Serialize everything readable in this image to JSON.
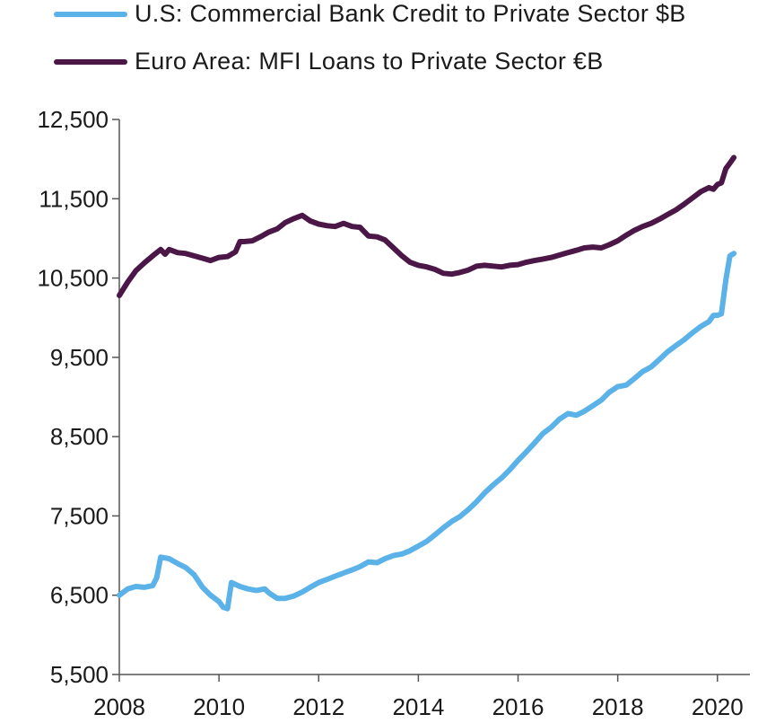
{
  "chart_data": {
    "type": "line",
    "title": "",
    "xlabel": "",
    "ylabel": "",
    "xlim": [
      2008.0,
      2020.4
    ],
    "ylim": [
      5500,
      12500
    ],
    "yticks": [
      5500,
      6500,
      7500,
      8500,
      9500,
      10500,
      11500,
      12500
    ],
    "ytick_labels": [
      "5,500",
      "6,500",
      "7,500",
      "8,500",
      "9,500",
      "10,500",
      "11,500",
      "12,500"
    ],
    "xticks": [
      2008,
      2010,
      2012,
      2014,
      2016,
      2018,
      2020
    ],
    "xtick_labels": [
      "2008",
      "2010",
      "2012",
      "2014",
      "2016",
      "2018",
      "2020"
    ],
    "grid": false,
    "legend_position": "top-left",
    "series": [
      {
        "name": "U.S: Commercial Bank Credit to Private Sector $B",
        "color": "#5ab2e8",
        "points": [
          [
            2008.0,
            6500
          ],
          [
            2008.17,
            6580
          ],
          [
            2008.33,
            6610
          ],
          [
            2008.5,
            6600
          ],
          [
            2008.67,
            6620
          ],
          [
            2008.75,
            6720
          ],
          [
            2008.83,
            6980
          ],
          [
            2009.0,
            6960
          ],
          [
            2009.17,
            6900
          ],
          [
            2009.33,
            6850
          ],
          [
            2009.5,
            6760
          ],
          [
            2009.67,
            6600
          ],
          [
            2009.83,
            6500
          ],
          [
            2010.0,
            6420
          ],
          [
            2010.08,
            6350
          ],
          [
            2010.17,
            6330
          ],
          [
            2010.25,
            6660
          ],
          [
            2010.42,
            6610
          ],
          [
            2010.58,
            6580
          ],
          [
            2010.75,
            6560
          ],
          [
            2010.92,
            6580
          ],
          [
            2011.0,
            6530
          ],
          [
            2011.17,
            6460
          ],
          [
            2011.33,
            6460
          ],
          [
            2011.5,
            6490
          ],
          [
            2011.67,
            6540
          ],
          [
            2011.83,
            6600
          ],
          [
            2012.0,
            6660
          ],
          [
            2012.17,
            6700
          ],
          [
            2012.33,
            6740
          ],
          [
            2012.5,
            6780
          ],
          [
            2012.67,
            6820
          ],
          [
            2012.83,
            6860
          ],
          [
            2013.0,
            6920
          ],
          [
            2013.17,
            6910
          ],
          [
            2013.33,
            6960
          ],
          [
            2013.5,
            7000
          ],
          [
            2013.67,
            7020
          ],
          [
            2013.83,
            7060
          ],
          [
            2014.0,
            7120
          ],
          [
            2014.17,
            7180
          ],
          [
            2014.33,
            7260
          ],
          [
            2014.5,
            7350
          ],
          [
            2014.67,
            7430
          ],
          [
            2014.83,
            7490
          ],
          [
            2015.0,
            7580
          ],
          [
            2015.17,
            7680
          ],
          [
            2015.33,
            7790
          ],
          [
            2015.5,
            7890
          ],
          [
            2015.67,
            7980
          ],
          [
            2015.83,
            8080
          ],
          [
            2016.0,
            8200
          ],
          [
            2016.17,
            8310
          ],
          [
            2016.33,
            8420
          ],
          [
            2016.5,
            8540
          ],
          [
            2016.67,
            8620
          ],
          [
            2016.83,
            8720
          ],
          [
            2017.0,
            8790
          ],
          [
            2017.17,
            8770
          ],
          [
            2017.33,
            8820
          ],
          [
            2017.5,
            8890
          ],
          [
            2017.67,
            8960
          ],
          [
            2017.83,
            9060
          ],
          [
            2018.0,
            9130
          ],
          [
            2018.17,
            9150
          ],
          [
            2018.33,
            9230
          ],
          [
            2018.5,
            9320
          ],
          [
            2018.67,
            9380
          ],
          [
            2018.83,
            9470
          ],
          [
            2019.0,
            9570
          ],
          [
            2019.17,
            9650
          ],
          [
            2019.33,
            9720
          ],
          [
            2019.5,
            9810
          ],
          [
            2019.67,
            9890
          ],
          [
            2019.83,
            9950
          ],
          [
            2019.92,
            10030
          ],
          [
            2020.0,
            10030
          ],
          [
            2020.08,
            10050
          ],
          [
            2020.17,
            10480
          ],
          [
            2020.25,
            10780
          ],
          [
            2020.33,
            10810
          ]
        ]
      },
      {
        "name": "Euro Area: MFI Loans to Private Sector €B",
        "color": "#4a1747",
        "points": [
          [
            2008.0,
            10280
          ],
          [
            2008.17,
            10450
          ],
          [
            2008.33,
            10590
          ],
          [
            2008.5,
            10690
          ],
          [
            2008.67,
            10780
          ],
          [
            2008.83,
            10860
          ],
          [
            2008.92,
            10800
          ],
          [
            2009.0,
            10860
          ],
          [
            2009.17,
            10820
          ],
          [
            2009.33,
            10810
          ],
          [
            2009.5,
            10780
          ],
          [
            2009.67,
            10750
          ],
          [
            2009.83,
            10720
          ],
          [
            2010.0,
            10760
          ],
          [
            2010.17,
            10770
          ],
          [
            2010.33,
            10830
          ],
          [
            2010.42,
            10960
          ],
          [
            2010.5,
            10960
          ],
          [
            2010.67,
            10970
          ],
          [
            2010.83,
            11020
          ],
          [
            2011.0,
            11080
          ],
          [
            2011.17,
            11120
          ],
          [
            2011.33,
            11200
          ],
          [
            2011.5,
            11250
          ],
          [
            2011.67,
            11290
          ],
          [
            2011.83,
            11220
          ],
          [
            2012.0,
            11180
          ],
          [
            2012.17,
            11160
          ],
          [
            2012.33,
            11150
          ],
          [
            2012.5,
            11190
          ],
          [
            2012.67,
            11150
          ],
          [
            2012.83,
            11140
          ],
          [
            2013.0,
            11030
          ],
          [
            2013.17,
            11020
          ],
          [
            2013.33,
            10980
          ],
          [
            2013.5,
            10880
          ],
          [
            2013.67,
            10780
          ],
          [
            2013.83,
            10700
          ],
          [
            2014.0,
            10660
          ],
          [
            2014.17,
            10640
          ],
          [
            2014.33,
            10610
          ],
          [
            2014.5,
            10560
          ],
          [
            2014.67,
            10550
          ],
          [
            2014.83,
            10570
          ],
          [
            2015.0,
            10600
          ],
          [
            2015.17,
            10650
          ],
          [
            2015.33,
            10660
          ],
          [
            2015.5,
            10650
          ],
          [
            2015.67,
            10640
          ],
          [
            2015.83,
            10660
          ],
          [
            2016.0,
            10670
          ],
          [
            2016.17,
            10700
          ],
          [
            2016.33,
            10720
          ],
          [
            2016.5,
            10740
          ],
          [
            2016.67,
            10760
          ],
          [
            2016.83,
            10790
          ],
          [
            2017.0,
            10820
          ],
          [
            2017.17,
            10850
          ],
          [
            2017.33,
            10880
          ],
          [
            2017.5,
            10890
          ],
          [
            2017.67,
            10880
          ],
          [
            2017.83,
            10920
          ],
          [
            2018.0,
            10970
          ],
          [
            2018.17,
            11040
          ],
          [
            2018.33,
            11100
          ],
          [
            2018.5,
            11150
          ],
          [
            2018.67,
            11190
          ],
          [
            2018.83,
            11240
          ],
          [
            2019.0,
            11300
          ],
          [
            2019.17,
            11360
          ],
          [
            2019.33,
            11430
          ],
          [
            2019.5,
            11510
          ],
          [
            2019.67,
            11590
          ],
          [
            2019.83,
            11640
          ],
          [
            2019.92,
            11620
          ],
          [
            2020.0,
            11680
          ],
          [
            2020.08,
            11700
          ],
          [
            2020.17,
            11880
          ],
          [
            2020.25,
            11950
          ],
          [
            2020.33,
            12020
          ]
        ]
      }
    ]
  }
}
